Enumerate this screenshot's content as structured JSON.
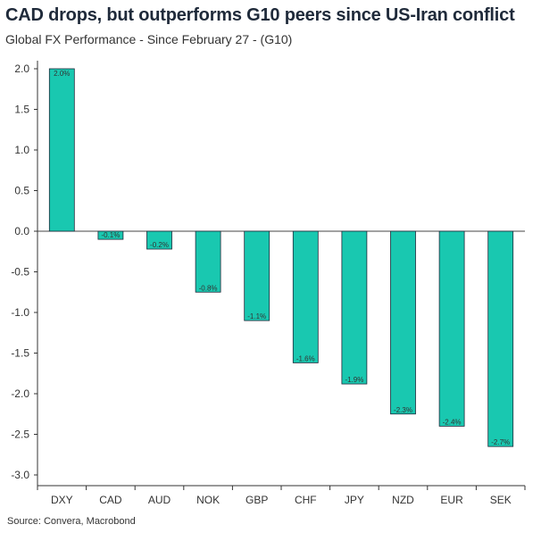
{
  "header": {
    "title": "CAD drops, but outperforms G10 peers since US-Iran conflict",
    "subtitle": "Global FX Performance - Since February 27 - (G10)"
  },
  "footer": {
    "source": "Source: Convera, Macrobond"
  },
  "chart_data": {
    "type": "bar",
    "title": "CAD drops, but outperforms G10 peers since US-Iran conflict",
    "subtitle": "Global FX Performance - Since February 27 - (G10)",
    "categories": [
      "DXY",
      "CAD",
      "AUD",
      "NOK",
      "GBP",
      "CHF",
      "JPY",
      "NZD",
      "EUR",
      "SEK"
    ],
    "values": [
      2.0,
      -0.1,
      -0.22,
      -0.75,
      -1.1,
      -1.62,
      -1.88,
      -2.25,
      -2.4,
      -2.65
    ],
    "data_labels": [
      "2.0%",
      "-0.1%",
      "-0.2%",
      "-0.8%",
      "-1.1%",
      "-1.6%",
      "-1.9%",
      "-2.3%",
      "-2.4%",
      "-2.7%"
    ],
    "ylim": [
      -3.0,
      2.0
    ],
    "yticks": [
      "2.0",
      "1.5",
      "1.0",
      "0.5",
      "0.0",
      "-0.5",
      "-1.0",
      "-1.5",
      "-2.0",
      "-2.5",
      "-3.0"
    ],
    "ytick_values": [
      2.0,
      1.5,
      1.0,
      0.5,
      0.0,
      -0.5,
      -1.0,
      -1.5,
      -2.0,
      -2.5,
      -3.0
    ],
    "xlabel": "",
    "ylabel": "",
    "grid": false,
    "legend": "none",
    "bar_color": "#19c8b0",
    "bar_edge_color": "#1f2a3a"
  }
}
